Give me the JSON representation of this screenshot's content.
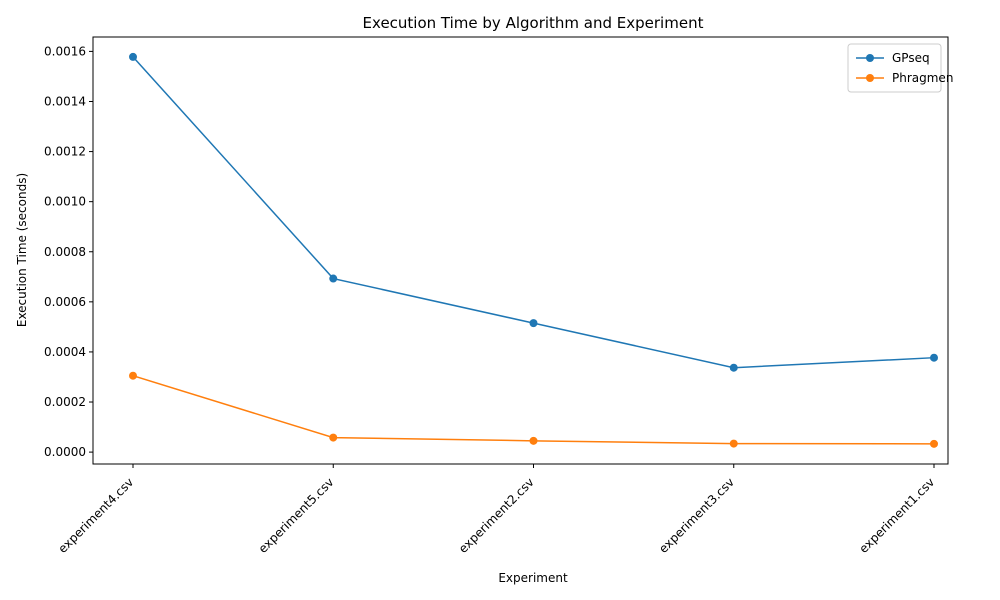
{
  "chart_data": {
    "type": "line",
    "title": "Execution Time by Algorithm and Experiment",
    "xlabel": "Experiment",
    "ylabel": "Execution Time (seconds)",
    "categories": [
      "experiment4.csv",
      "experiment5.csv",
      "experiment2.csv",
      "experiment3.csv",
      "experiment1.csv"
    ],
    "ylim": [
      -4.75e-05,
      0.0016575
    ],
    "yticks": [
      0.0,
      0.0002,
      0.0004,
      0.0006,
      0.0008,
      0.001,
      0.0012,
      0.0014,
      0.0016
    ],
    "ytick_labels": [
      "0.0000",
      "0.0002",
      "0.0004",
      "0.0006",
      "0.0008",
      "0.0010",
      "0.0012",
      "0.0014",
      "0.0016"
    ],
    "grid": false,
    "legend_position": "top-right",
    "series": [
      {
        "name": "GPseq",
        "color": "#1f77b4",
        "values": [
          0.001578,
          0.000693,
          0.000515,
          0.000337,
          0.000377
        ]
      },
      {
        "name": "Phragmen",
        "color": "#ff7f0e",
        "values": [
          0.000305,
          5.8e-05,
          4.5e-05,
          3.4e-05,
          3.3e-05
        ]
      }
    ]
  }
}
